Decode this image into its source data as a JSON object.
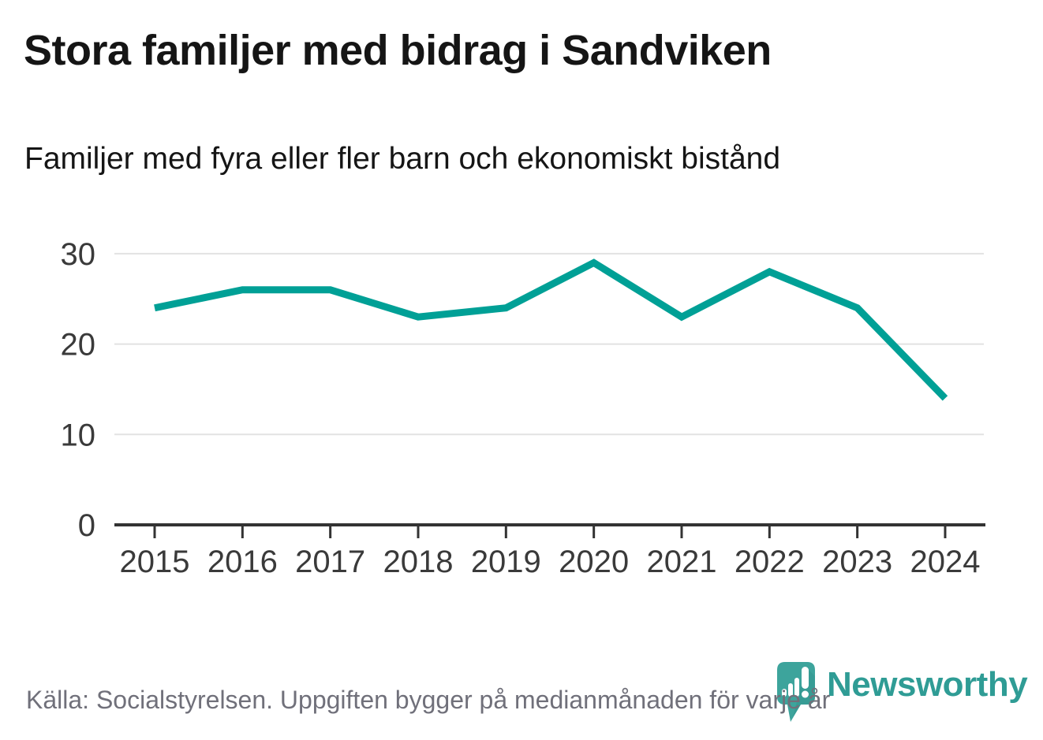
{
  "header": {
    "title": "Stora familjer med bidrag i Sandviken",
    "subtitle": "Familjer med fyra eller fler barn och ekonomiskt bistånd"
  },
  "chart_data": {
    "type": "line",
    "title": "Stora familjer med bidrag i Sandviken",
    "subtitle": "Familjer med fyra eller fler barn och ekonomiskt bistånd",
    "categories": [
      2015,
      2016,
      2017,
      2018,
      2019,
      2020,
      2021,
      2022,
      2023,
      2024
    ],
    "series": [
      {
        "name": "Familjer med fyra eller fler barn och ekonomiskt bistånd",
        "values": [
          24,
          26,
          26,
          23,
          24,
          29,
          23,
          28,
          24,
          14
        ]
      }
    ],
    "xlabel": "",
    "ylabel": "",
    "yticks": [
      0,
      10,
      20,
      30
    ],
    "ylim": [
      0,
      33
    ],
    "grid": "horizontal",
    "legend": "none",
    "colors": {
      "line": "#00a096",
      "grid": "#e2e2e2",
      "axis": "#333333",
      "tick_label": "#3a3a3a"
    }
  },
  "footer": {
    "source": "Källa: Socialstyrelsen. Uppgiften bygger på medianmånaden för varje år",
    "logo_text": "Newsworthy",
    "logo_color": "#2f9c95",
    "logo_icon": "newsworthy-chart-pin-icon"
  }
}
